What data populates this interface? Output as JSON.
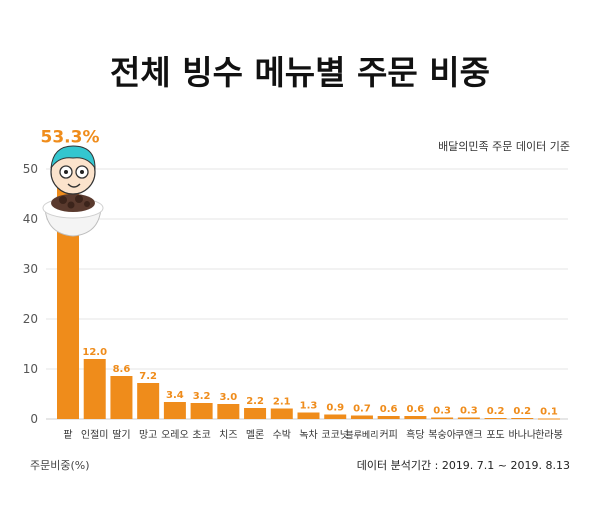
{
  "chart_data": {
    "type": "bar",
    "title": "전체 빙수 메뉴별 주문 비중",
    "source_note": "배달의민족 주문 데이터 기준",
    "ylabel": "주문비중(%)",
    "footnote": "데이터 분석기간 : 2019. 7.1 ~ 2019. 8.13",
    "ylim": [
      0,
      55
    ],
    "yticks": [
      0,
      10,
      20,
      30,
      40,
      50
    ],
    "grid": true,
    "bar_color": "#ef8c1b",
    "label_color": "#ef8c1b",
    "categories": [
      "팥",
      "인절미",
      "딸기",
      "망고",
      "오레오",
      "초코",
      "치즈",
      "멜론",
      "수박",
      "녹차",
      "코코넛",
      "블루베리",
      "커피",
      "흑당",
      "복숭아",
      "쿠앤크",
      "포도",
      "바나나",
      "한라봉"
    ],
    "values": [
      53.3,
      12.0,
      8.6,
      7.2,
      3.4,
      3.2,
      3.0,
      2.2,
      2.1,
      1.3,
      0.9,
      0.7,
      0.6,
      0.6,
      0.3,
      0.3,
      0.2,
      0.2,
      0.1
    ],
    "value_labels": [
      "53.3%",
      "12.0",
      "8.6",
      "7.2",
      "3.4",
      "3.2",
      "3.0",
      "2.2",
      "2.1",
      "1.3",
      "0.9",
      "0.7",
      "0.6",
      "0.6",
      "0.3",
      "0.3",
      "0.2",
      "0.2",
      "0.1"
    ],
    "mascot_icon": "mascot-bingsu-icon"
  }
}
